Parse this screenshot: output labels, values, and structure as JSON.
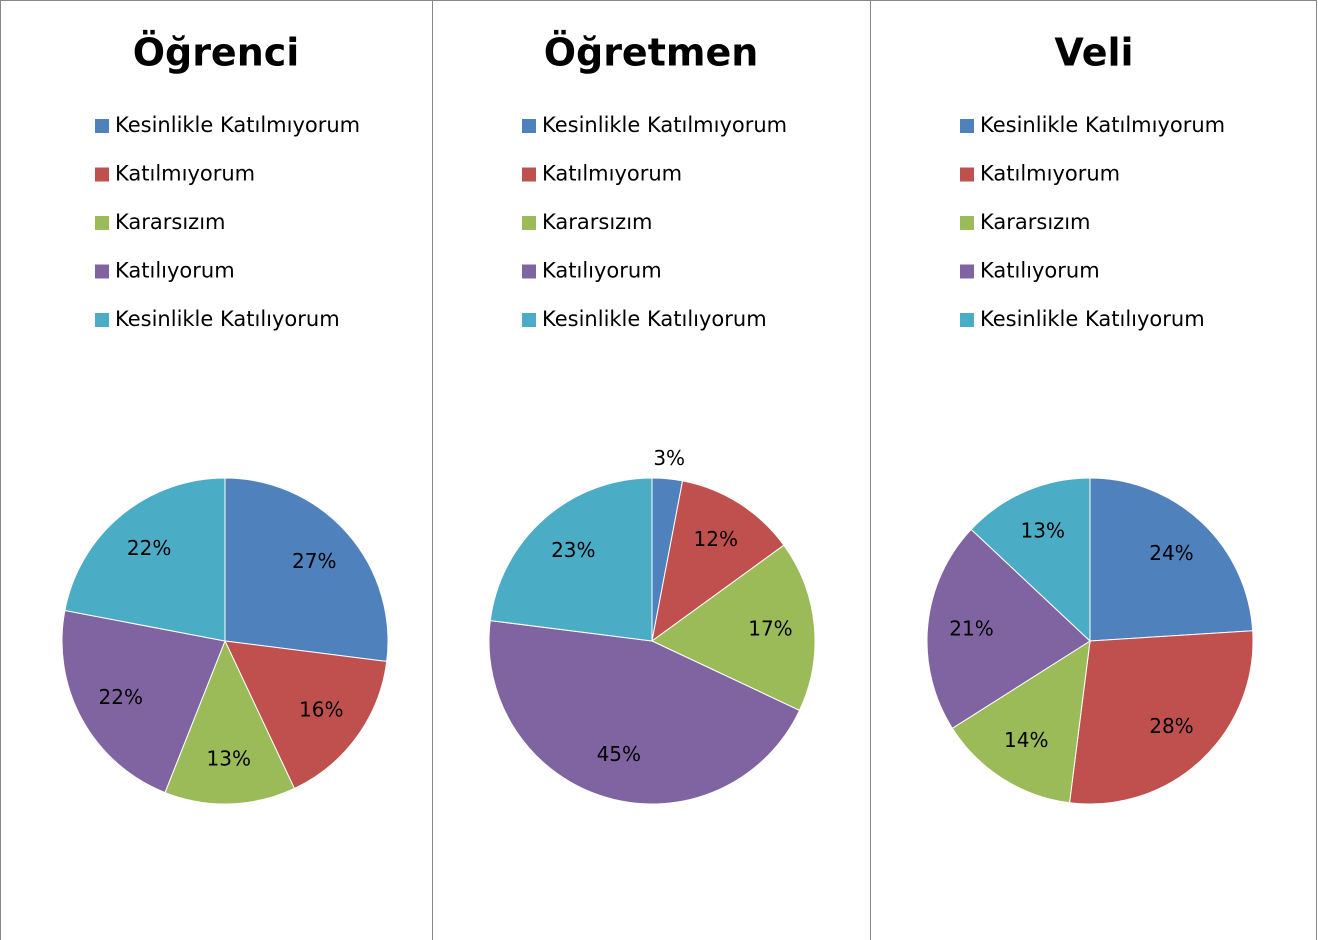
{
  "chart_data": [
    {
      "type": "pie",
      "title": "Öğrenci",
      "categories": [
        "Kesinlikle Katılmıyorum",
        "Katılmıyorum",
        "Kararsızım",
        "Katılıyorum",
        "Kesinlikle Katılıyorum"
      ],
      "values": [
        27,
        16,
        13,
        22,
        22
      ],
      "value_labels": [
        "27%",
        "16%",
        "13%",
        "22%",
        "22%"
      ],
      "colors": [
        "#4F81BD",
        "#C0504D",
        "#9BBB59",
        "#8064A2",
        "#4BACC6"
      ],
      "legend": "top"
    },
    {
      "type": "pie",
      "title": "Öğretmen",
      "categories": [
        "Kesinlikle Katılmıyorum",
        "Katılmıyorum",
        "Kararsızım",
        "Katılıyorum",
        "Kesinlikle Katılıyorum"
      ],
      "values": [
        3,
        12,
        17,
        45,
        23
      ],
      "value_labels": [
        "3%",
        "12%",
        "17%",
        "45%",
        "23%"
      ],
      "colors": [
        "#4F81BD",
        "#C0504D",
        "#9BBB59",
        "#8064A2",
        "#4BACC6"
      ],
      "legend": "top"
    },
    {
      "type": "pie",
      "title": "Veli",
      "categories": [
        "Kesinlikle Katılmıyorum",
        "Katılmıyorum",
        "Kararsızım",
        "Katılıyorum",
        "Kesinlikle Katılıyorum"
      ],
      "values": [
        24,
        28,
        14,
        21,
        13
      ],
      "value_labels": [
        "24%",
        "28%",
        "14%",
        "21%",
        "13%"
      ],
      "colors": [
        "#4F81BD",
        "#C0504D",
        "#9BBB59",
        "#8064A2",
        "#4BACC6"
      ],
      "legend": "top"
    }
  ]
}
